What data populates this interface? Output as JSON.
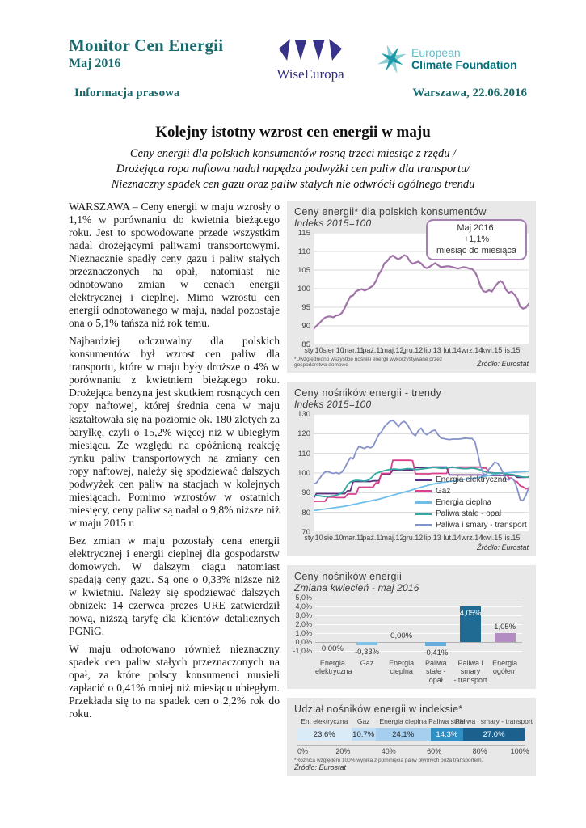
{
  "header": {
    "title": "Monitor Cen Energii",
    "subtitle": "Maj 2016",
    "press_label": "Informacja prasowa",
    "dateline": "Warszawa, 22.06.2016",
    "wise_logo_text": "WiseEuropa",
    "ecf_logo_line1": "European",
    "ecf_logo_line2": "Climate Foundation",
    "accent_color": "#17696B"
  },
  "article": {
    "headline": "Kolejny istotny wzrost cen energii w maju",
    "subheadline_lines": [
      "Ceny energii dla polskich konsumentów rosną trzeci miesiąc z rzędu /",
      "Drożejąca ropa naftowa nadal napędza podwyżki cen paliw dla transportu/",
      "Nieznaczny spadek cen gazu oraz paliw stałych nie odwrócił ogólnego trendu"
    ],
    "paragraphs": [
      "WARSZAWA – Ceny energii w maju wzrosły o 1,1% w porównaniu do kwietnia bieżącego roku. Jest to spowodowane przede wszystkim nadal drożejącymi paliwami transportowymi. Nieznacznie spadły ceny gazu i paliw stałych przeznaczonych na opał, natomiast nie odnotowano zmian w cenach energii elektrycznej i cieplnej. Mimo wzrostu cen energii odnotowanego w maju, nadal pozostaje ona o 5,1% tańsza niż rok temu.",
      "Najbardziej odczuwalny dla polskich konsumentów był wzrost cen paliw dla transportu, które w maju były droższe o 4% w porównaniu z kwietniem bieżącego roku. Drożejąca benzyna jest skutkiem rosnących cen ropy naftowej, której średnia cena w maju kształtowała się na poziomie ok. 180 złotych za baryłkę, czyli o 15,2% więcej niż w ubiegłym miesiącu. Ze względu na opóźnioną reakcję rynku paliw transportowych na zmiany cen ropy naftowej, należy się spodziewać dalszych podwyżek cen paliw na stacjach w kolejnych miesiącach. Pomimo wzrostów w ostatnich miesięcy, ceny paliw są nadal o 9,8% niższe niż w maju 2015 r.",
      "Bez zmian w maju pozostały cena energii elektrycznej i energii cieplnej dla gospodarstw domowych. W dalszym ciągu natomiast spadają ceny gazu. Są one o 0,33% niższe niż w kwietniu. Należy się spodziewać dalszych obniżek: 14 czerwca prezes URE zatwierdził nową, niższą taryfę dla klientów detalicznych PGNiG.",
      "W maju odnotowano również nieznaczny spadek cen paliw stałych przeznaczonych na opał, za które polscy konsumenci musieli zapłacić o 0,41% mniej niż miesiącu ubiegłym. Przekłada się to na spadek cen o 2,2% rok do roku."
    ]
  },
  "chart_data": [
    {
      "type": "line",
      "title": "Ceny energii* dla polskich konsumentów",
      "subtitle": "Indeks 2015=100",
      "annotation_lines": [
        "Maj 2016:",
        "+1,1%",
        "miesiąc do miesiąca"
      ],
      "ylim": [
        85,
        115
      ],
      "ytick_step": 5,
      "n_points": 77,
      "x_ticks": [
        "sty.10",
        "sier.10",
        "mar.11",
        "paź.11",
        "maj.12",
        "gru.12",
        "lip.13",
        "lut.14",
        "wrz.14",
        "kwi.15",
        "lis.15"
      ],
      "x_tick_positions": [
        0,
        7,
        14,
        21,
        28,
        35,
        42,
        49,
        56,
        63,
        70
      ],
      "series": [
        {
          "name": "Ceny energii dla polskich konsumentów",
          "color": "#A173A9",
          "values": [
            89.2,
            90,
            90.7,
            91.5,
            92.2,
            92.5,
            92.5,
            92.3,
            92.8,
            92.9,
            93.5,
            94.8,
            96.5,
            97.9,
            98.2,
            99.3,
            99.6,
            99.9,
            99.5,
            99.8,
            100.3,
            100.8,
            102,
            103.8,
            105,
            106.8,
            107.4,
            108.4,
            108.9,
            108.3,
            107.9,
            108.4,
            109,
            108.7,
            107.4,
            106.7,
            107,
            107.3,
            106.8,
            105.9,
            105.5,
            105.9,
            106.4,
            106.9,
            106.3,
            105.8,
            105.9,
            106,
            106,
            105.8,
            105.6,
            105.4,
            105.6,
            105.8,
            105.7,
            105.4,
            105.3,
            104.5,
            103,
            100.6,
            99.3,
            99.1,
            99.6,
            99.2,
            100.4,
            101.4,
            102.1,
            101.5,
            99.7,
            98.9,
            99.2,
            98.4,
            97.4,
            95.2,
            94.6,
            94.9,
            95.9
          ]
        }
      ],
      "footnote": "*Uwzględniono wszystkie nośniki energii wykorzystywane przez gospodarstwa domowe",
      "source": "Źródło: Eurostat"
    },
    {
      "type": "line",
      "title": "Ceny nośników energii - trendy",
      "subtitle": "Indeks 2015=100",
      "ylim": [
        70,
        130
      ],
      "ytick_step": 10,
      "n_points": 77,
      "x_ticks": [
        "sty.10",
        "sie.10",
        "mar.11",
        "paź.11",
        "maj.12",
        "gru.12",
        "lip.13",
        "lut.14",
        "wrz.14",
        "kwi.15",
        "lis.15"
      ],
      "x_tick_positions": [
        0,
        7,
        14,
        21,
        28,
        35,
        42,
        49,
        56,
        63,
        70
      ],
      "series": [
        {
          "name": "Energia elektryczna",
          "color": "#5C2E80",
          "values": [
            87.3,
            89.5,
            89.5,
            89.5,
            89.5,
            89.5,
            89.5,
            89.5,
            89.5,
            89.5,
            89.5,
            89.5,
            91,
            91,
            95.7,
            95.7,
            95.7,
            95.7,
            95.7,
            95.7,
            95.7,
            96,
            96,
            96,
            99.5,
            99.5,
            99.5,
            99.5,
            101.5,
            101.5,
            101.5,
            101.5,
            101.5,
            101.5,
            101.5,
            101.5,
            102.8,
            102.8,
            102.8,
            102.8,
            102.8,
            102.8,
            103,
            103,
            103,
            103,
            103,
            103,
            99,
            99,
            99,
            99,
            99,
            99,
            99,
            99,
            99,
            99,
            99,
            99,
            98.8,
            98.8,
            98.8,
            98.8,
            98.8,
            98.8,
            98.8,
            98.8,
            98.8,
            98.8,
            98.8,
            98.8,
            97.8,
            97.8,
            97.8,
            97.8,
            98
          ]
        },
        {
          "name": "Gaz",
          "color": "#D9408C",
          "values": [
            85.5,
            85.6,
            85.6,
            85.6,
            85.6,
            87.7,
            87.7,
            87.7,
            87.5,
            87.5,
            87.5,
            87.5,
            89.3,
            89.3,
            89.3,
            89.3,
            92.8,
            92.8,
            92.8,
            92.8,
            92.8,
            92.8,
            95,
            95,
            99.8,
            99.8,
            99.8,
            99.8,
            106.5,
            106.5,
            106.5,
            106.5,
            106.5,
            106.5,
            106.5,
            106.3,
            99.6,
            99.6,
            99.6,
            99.6,
            99.6,
            99.6,
            99.8,
            99.8,
            99.8,
            99.8,
            99.8,
            99.8,
            102.8,
            102.8,
            102.8,
            103,
            103,
            103,
            103,
            103,
            103,
            103,
            103,
            103,
            102.5,
            102.5,
            100.2,
            100.2,
            100,
            100,
            100,
            100,
            99.8,
            97.5,
            97.5,
            96,
            95.5,
            93.5,
            93,
            92,
            92.3
          ]
        },
        {
          "name": "Energia cieplna",
          "color": "#6FBEE9",
          "values": [
            81,
            81.1,
            81.3,
            81.5,
            81.7,
            81.9,
            82.1,
            82.3,
            82.5,
            82.7,
            82.9,
            83.1,
            83.4,
            83.7,
            84,
            84.3,
            84.6,
            84.9,
            85.2,
            85.5,
            85.8,
            86.1,
            86.4,
            86.7,
            87.1,
            87.5,
            87.9,
            88.3,
            88.7,
            89.1,
            89.5,
            89.9,
            90.3,
            90.7,
            91.1,
            91.5,
            92,
            92.4,
            92.8,
            93.2,
            93.6,
            94,
            94.3,
            94.6,
            94.9,
            95.1,
            95.3,
            95.5,
            95.7,
            95.9,
            96.1,
            96.3,
            96.5,
            96.7,
            96.9,
            97.1,
            97.3,
            97.5,
            97.7,
            97.9,
            98.2,
            98.5,
            98.8,
            99.1,
            99.4,
            99.6,
            99.8,
            100,
            100.1,
            100.2,
            100.3,
            100.4,
            100.5,
            100.6,
            100.7,
            100.8,
            100.9
          ]
        },
        {
          "name": "Paliwa stałe - opał",
          "color": "#36A6A1",
          "values": [
            88.5,
            88.6,
            88.4,
            88.2,
            88,
            88,
            88.2,
            88.4,
            88.7,
            89.2,
            90,
            91.5,
            94,
            95.5,
            96,
            96.2,
            96.2,
            96,
            95.9,
            96.2,
            97,
            98.5,
            99.8,
            100.3,
            100.8,
            101.2,
            101.5,
            101.8,
            102,
            102,
            101.8,
            101.8,
            102,
            102.2,
            102.2,
            102,
            101.8,
            101.8,
            102,
            102.2,
            102.4,
            102.6,
            102.8,
            102.8,
            102.6,
            102.4,
            102.4,
            102.6,
            102.8,
            103,
            102.8,
            102.5,
            102.3,
            102.2,
            102.2,
            102.3,
            102.5,
            102.3,
            102,
            101.5,
            101,
            100.5,
            100.2,
            100,
            100,
            100,
            100,
            99.8,
            99.5,
            99.3,
            99.2,
            99,
            98.5,
            98.2,
            98,
            97.9,
            97.8
          ]
        },
        {
          "name": "Paliwa i smary - transport",
          "color": "#8592C9",
          "values": [
            94.5,
            95,
            97,
            99,
            100.5,
            100.8,
            100.2,
            99.8,
            100.2,
            99.6,
            100.5,
            102.5,
            105.5,
            107.8,
            107.2,
            111,
            113.5,
            113,
            112.5,
            113.5,
            112.8,
            113.5,
            116.5,
            119.5,
            121,
            123.5,
            125,
            126.3,
            126.7,
            125.5,
            123.5,
            125.5,
            126.2,
            125,
            122.5,
            120,
            119,
            121.5,
            122.8,
            120.5,
            119.5,
            120.5,
            121.5,
            121.8,
            119.5,
            117.8,
            117.5,
            117.2,
            117,
            117.2,
            117.3,
            117.2,
            117.4,
            117.6,
            117.8,
            117.5,
            117.6,
            116,
            110,
            103.5,
            99.5,
            99,
            102,
            103.5,
            105.5,
            105,
            103,
            100,
            97,
            96.5,
            97.5,
            96,
            92,
            86.5,
            86,
            88.5,
            92.5
          ]
        }
      ],
      "source": "Źródło: Eurostat"
    },
    {
      "type": "bar",
      "title": "Ceny nośników energii",
      "subtitle": "Zmiana kwiecień - maj 2016",
      "categories": [
        "Energia elektryczna",
        "Gaz",
        "Energia cieplna",
        "Paliwa stałe - opał",
        "Paliwa i smary - transport",
        "Energia ogółem"
      ],
      "categories_display": [
        "Energia\nelektryczna",
        "Gaz",
        "Energia\ncieplna",
        "Paliwa stałe -\nopał",
        "Paliwa i smary\n- transport",
        "Energia\nogółem"
      ],
      "values": [
        0,
        -0.33,
        0,
        -0.41,
        4.05,
        1.05
      ],
      "labels": [
        "0,00%",
        "-0,33%",
        "0,00%",
        "-0,41%",
        "4,05%",
        "1,05%"
      ],
      "label_placement": [
        "below",
        "below",
        "above",
        "below",
        "inside",
        "above"
      ],
      "bar_colors": [
        "#7EC2E8",
        "#7EC2E8",
        "#7EC2E8",
        "#66ACDD",
        "#1F6B93",
        "#B38CC2"
      ],
      "ylim": [
        -1,
        5
      ],
      "yticks": [
        "5,0%",
        "4,0%",
        "3,0%",
        "2,0%",
        "1,0%",
        "0,0%",
        "-1,0%"
      ]
    },
    {
      "type": "stacked-bar",
      "title": "Udział nośników energii w indeksie*",
      "segments": [
        {
          "label": "En. elektryczna",
          "value": 23.6,
          "display": "23,6%",
          "color": "#DAEBF8",
          "text_color": "#2b2b2b"
        },
        {
          "label": "Gaz",
          "value": 10.7,
          "display": "10,7%",
          "color": "#BEDCF3",
          "text_color": "#2b2b2b"
        },
        {
          "label": "Energia cieplna",
          "value": 24.1,
          "display": "24,1%",
          "color": "#A6CFEF",
          "text_color": "#2b2b2b"
        },
        {
          "label": "Paliwa stałe",
          "value": 14.3,
          "display": "14,3%",
          "color": "#3090C4",
          "text_color": "#ffffff"
        },
        {
          "label": "Paliwa i smary - transport",
          "value": 27.0,
          "display": "27,0%",
          "color": "#1C608E",
          "text_color": "#ffffff"
        }
      ],
      "axis_ticks": [
        "0%",
        "20%",
        "40%",
        "60%",
        "80%",
        "100%"
      ],
      "footnote": "*Różnica względem 100% wynika z pominięcia paliw płynnych poza transportem.",
      "source": "Źródło: Eurostat"
    }
  ]
}
